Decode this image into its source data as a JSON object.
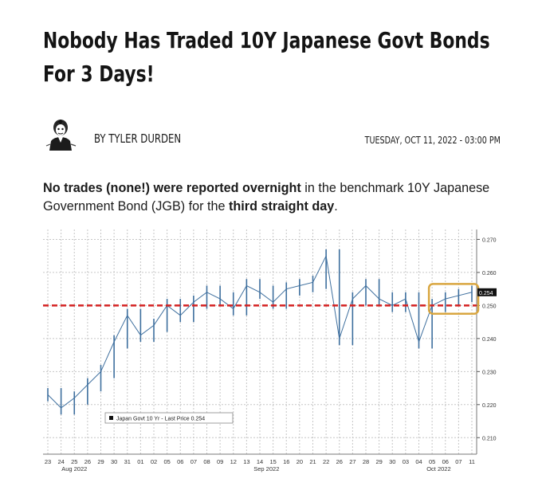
{
  "article": {
    "headline": "Nobody Has Traded 10Y Japanese Govt Bonds For 3 Days!",
    "author": "BY TYLER DURDEN",
    "date": "TUESDAY, OCT 11, 2022 - 03:00 PM",
    "lead": {
      "bold1": "No trades (none!) were reported overnight",
      "text1": " in the benchmark 10Y Japanese Government Bond (JGB) for the ",
      "bold2": "third straight day",
      "text2": "."
    }
  },
  "chart_data": {
    "type": "line",
    "legend": "Japan Govt 10 Yr - Last Price 0.254",
    "last_price_label": "0.254",
    "y_ticks": [
      "0.270",
      "0.260",
      "0.250",
      "0.240",
      "0.230",
      "0.220",
      "0.210"
    ],
    "ylim": [
      0.205,
      0.273
    ],
    "reference_line": 0.25,
    "x_tick_labels": [
      "23",
      "24",
      "25",
      "26",
      "29",
      "30",
      "31",
      "01",
      "02",
      "05",
      "06",
      "07",
      "08",
      "09",
      "12",
      "13",
      "14",
      "15",
      "16",
      "20",
      "21",
      "22",
      "26",
      "27",
      "28",
      "29",
      "30",
      "03",
      "04",
      "05",
      "06",
      "07",
      "11"
    ],
    "x_month_labels": [
      {
        "label": "Aug 2022",
        "at": 2
      },
      {
        "label": "Sep 2022",
        "at": 16.5
      },
      {
        "label": "Oct 2022",
        "at": 29.5
      }
    ],
    "series": [
      {
        "values": [
          0.223,
          0.219,
          0.222,
          0.226,
          0.23,
          0.239,
          0.247,
          0.241,
          0.244,
          0.25,
          0.247,
          0.251,
          0.254,
          0.252,
          0.249,
          0.256,
          0.254,
          0.251,
          0.255,
          0.256,
          0.257,
          0.265,
          0.24,
          0.252,
          0.256,
          0.252,
          0.25,
          0.252,
          0.239,
          0.25,
          0.252,
          0.253,
          0.254
        ]
      }
    ],
    "colors": {
      "series": "#3e6f9e",
      "reference": "#d42020",
      "highlight": "#d9a640",
      "grid": "#c6c6c6",
      "price_tag": "#111111"
    }
  }
}
